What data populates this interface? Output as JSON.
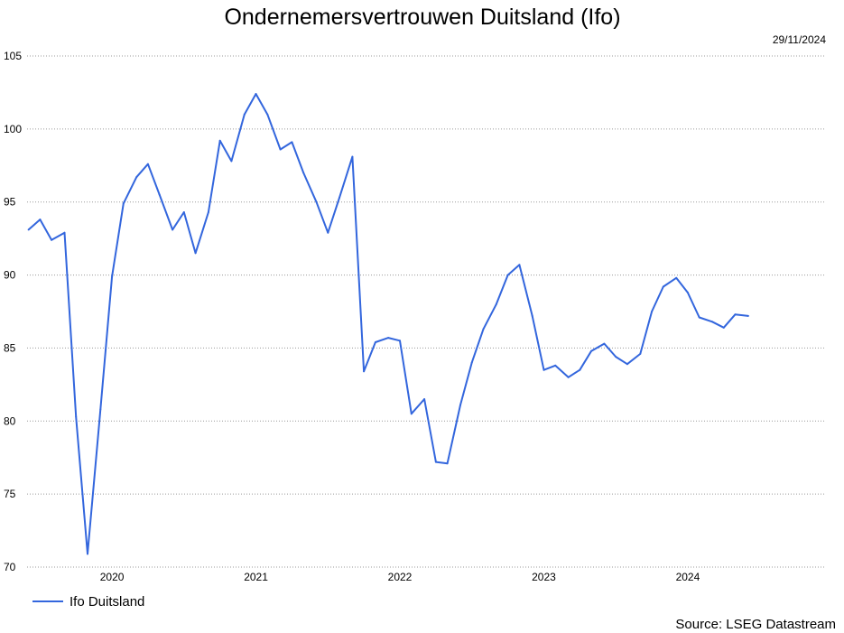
{
  "chart_data": {
    "type": "line",
    "title": "Ondernemersvertrouwen Duitsland (Ifo)",
    "date_label": "29/11/2024",
    "source": "Source: LSEG Datastream",
    "xlabel": "",
    "ylabel": "",
    "ylim": [
      70,
      105
    ],
    "yticks": [
      70,
      75,
      80,
      85,
      90,
      95,
      100,
      105
    ],
    "xtick_labels": [
      "2020",
      "2021",
      "2022",
      "2023",
      "2024"
    ],
    "xtick_values": [
      2020.0,
      2021.0,
      2022.0,
      2023.0,
      2024.0
    ],
    "xlim": [
      2019.41,
      2024.96
    ],
    "grid": true,
    "legend_position": "bottom-left",
    "colors": {
      "series": "#3366dd"
    },
    "series": [
      {
        "name": "Ifo Duitsland",
        "x": [
          2019.42,
          2019.5,
          2019.58,
          2019.67,
          2019.75,
          2019.83,
          2019.92,
          2020.0,
          2020.08,
          2020.17,
          2020.25,
          2020.33,
          2020.42,
          2020.5,
          2020.58,
          2020.67,
          2020.75,
          2020.83,
          2020.92,
          2021.0,
          2021.08,
          2021.17,
          2021.25,
          2021.33,
          2021.42,
          2021.5,
          2021.58,
          2021.67,
          2021.75,
          2021.83,
          2021.92,
          2022.0,
          2022.08,
          2022.17,
          2022.25,
          2022.33,
          2022.42,
          2022.5,
          2022.58,
          2022.67,
          2022.75,
          2022.83,
          2022.92,
          2023.0,
          2023.08,
          2023.17,
          2023.25,
          2023.33,
          2023.42,
          2023.5,
          2023.58,
          2023.67,
          2023.75,
          2023.83,
          2023.92,
          2024.0,
          2024.08,
          2024.17,
          2024.25,
          2024.33,
          2024.42
        ],
        "values": [
          93.1,
          93.8,
          92.4,
          92.9,
          80.3,
          70.9,
          80.8,
          89.9,
          94.9,
          96.7,
          97.6,
          95.5,
          93.1,
          94.3,
          91.5,
          94.3,
          99.2,
          97.8,
          101.0,
          102.4,
          101.0,
          98.6,
          99.1,
          97.0,
          95.0,
          92.9,
          95.3,
          98.1,
          83.4,
          85.4,
          85.7,
          85.5,
          80.5,
          81.5,
          77.2,
          77.1,
          81.1,
          84.0,
          86.3,
          88.0,
          90.0,
          90.7,
          87.2,
          83.5,
          83.8,
          83.0,
          83.5,
          84.8,
          85.3,
          84.4,
          83.9,
          84.6,
          87.5,
          89.2,
          89.8,
          88.8,
          87.1,
          86.8,
          86.4,
          87.3,
          87.2
        ]
      }
    ]
  }
}
